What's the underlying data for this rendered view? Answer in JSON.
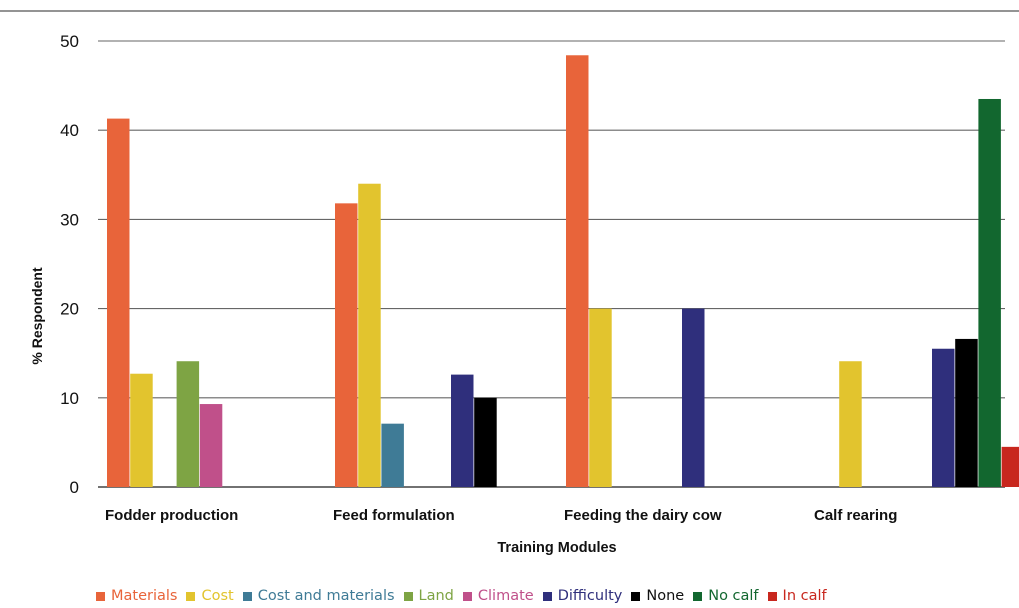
{
  "chart_data": {
    "type": "bar",
    "categories": [
      "Fodder production",
      "Feed formulation",
      "Feeding the dairy cow",
      "Calf rearing"
    ],
    "xlabel": "Training Modules",
    "ylabel": "% Respondent",
    "ylim": [
      0,
      50
    ],
    "yticks": [
      0,
      10,
      20,
      30,
      40,
      50
    ],
    "grid": true,
    "legend_position": "bottom",
    "series": [
      {
        "name": "Materials",
        "color": "#e8643a",
        "values": [
          41.3,
          31.8,
          48.4,
          null
        ]
      },
      {
        "name": "Cost",
        "color": "#e2c42e",
        "values": [
          12.7,
          34.0,
          20.0,
          14.1
        ]
      },
      {
        "name": "Cost and materials",
        "color": "#3f7b96",
        "values": [
          null,
          7.1,
          null,
          null
        ]
      },
      {
        "name": "Land",
        "color": "#7ea444",
        "values": [
          14.1,
          null,
          null,
          null
        ]
      },
      {
        "name": "Climate",
        "color": "#c0508a",
        "values": [
          9.3,
          null,
          null,
          null
        ]
      },
      {
        "name": "Difficulty",
        "color": "#2f2f7c",
        "values": [
          null,
          12.6,
          20.0,
          15.5
        ]
      },
      {
        "name": "None",
        "color": "#000000",
        "values": [
          null,
          10.0,
          null,
          16.6
        ]
      },
      {
        "name": "No calf",
        "color": "#12672f",
        "values": [
          null,
          null,
          null,
          43.5
        ]
      },
      {
        "name": "In calf",
        "color": "#c8271e",
        "values": [
          null,
          null,
          null,
          4.5
        ]
      }
    ]
  }
}
